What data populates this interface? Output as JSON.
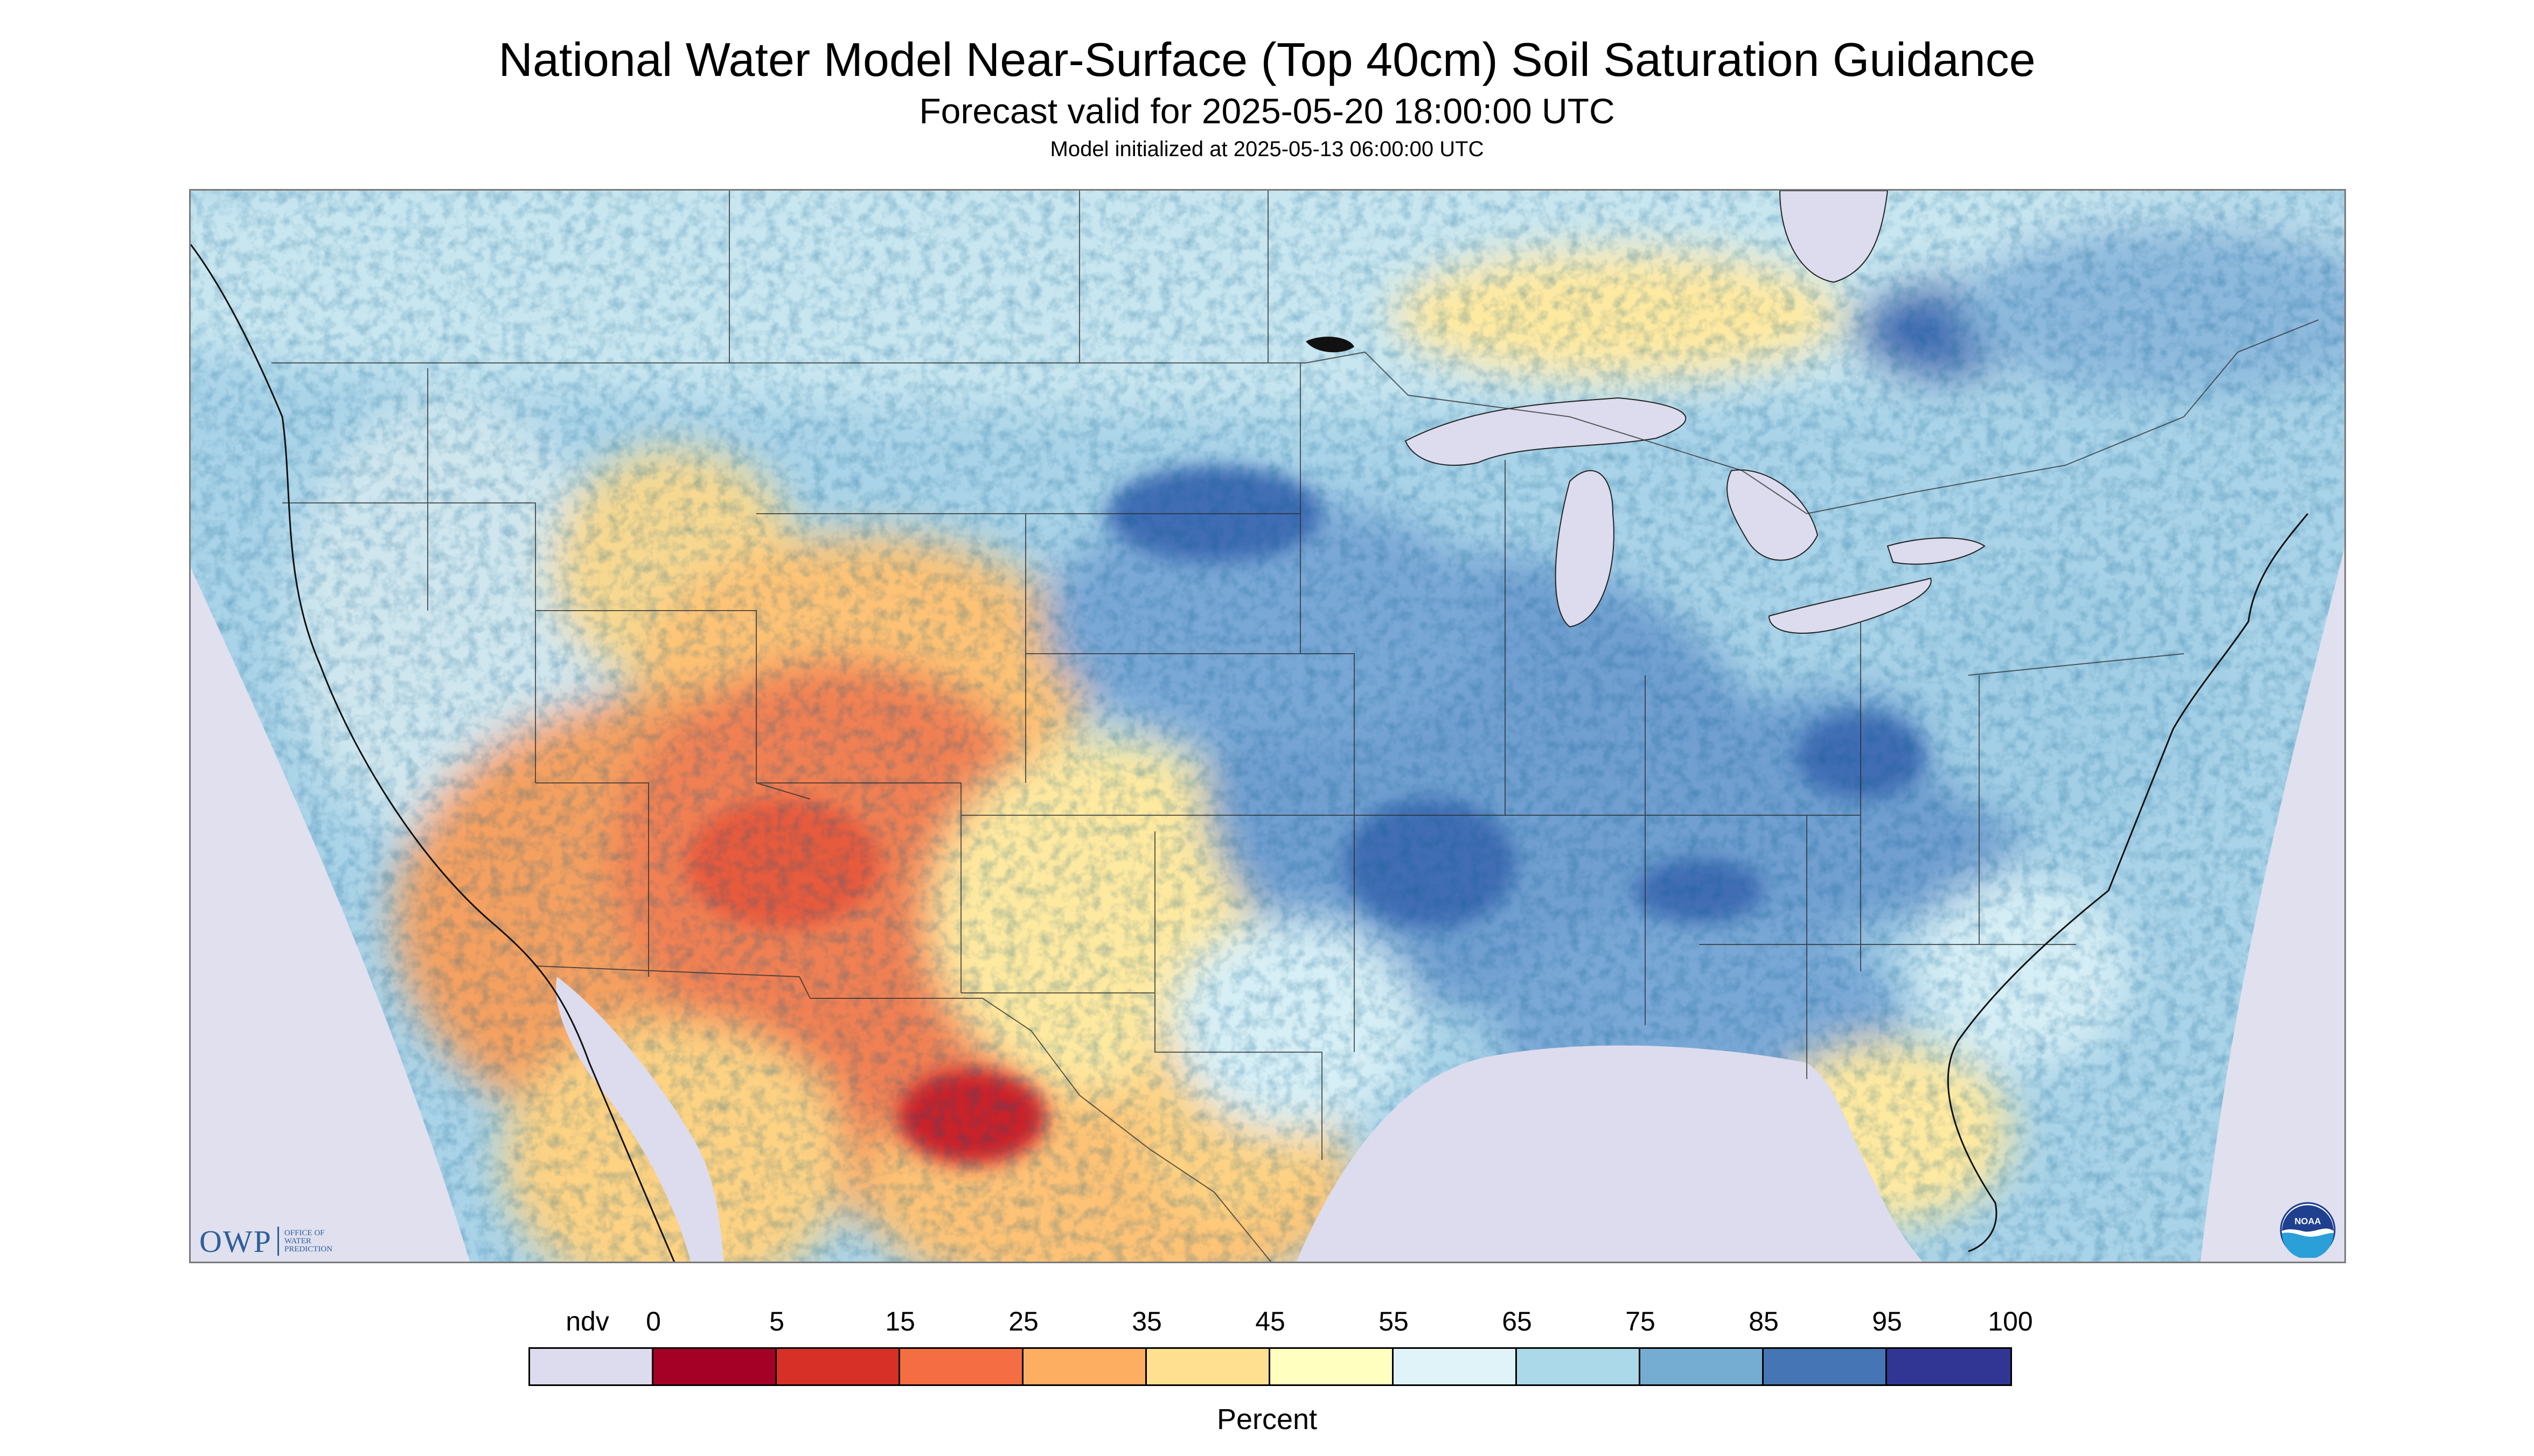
{
  "header": {
    "title": "National Water Model Near-Surface (Top 40cm) Soil Saturation Guidance",
    "forecast_valid": "Forecast valid for 2025-05-20 18:00:00 UTC",
    "model_initialized": "Model initialized at 2025-05-13 06:00:00 UTC"
  },
  "logos": {
    "owp": {
      "abbr": "OWP",
      "line1": "OFFICE OF",
      "line2": "WATER",
      "line3": "PREDICTION"
    },
    "noaa": {
      "text": "NOAA"
    }
  },
  "legend": {
    "units": "Percent",
    "ticks": [
      "ndv",
      "0",
      "5",
      "15",
      "25",
      "35",
      "45",
      "55",
      "65",
      "75",
      "85",
      "95",
      "100"
    ],
    "colors": [
      "#dcdcee",
      "#a50026",
      "#d73027",
      "#f46d43",
      "#fdae61",
      "#fee090",
      "#ffffbf",
      "#e0f3f8",
      "#abd9e9",
      "#74add1",
      "#4575b4",
      "#313695"
    ]
  },
  "map": {
    "no_data_color": "#dcdcee",
    "colors": {
      "very_dry": "#c8242c",
      "dry": "#f08052",
      "moderate_dry": "#fdc274",
      "neutral": "#fee9a0",
      "light_wet": "#d6eef5",
      "wet": "#a3cfe6",
      "very_wet": "#6f9fd0",
      "saturated": "#3f6db4"
    }
  }
}
